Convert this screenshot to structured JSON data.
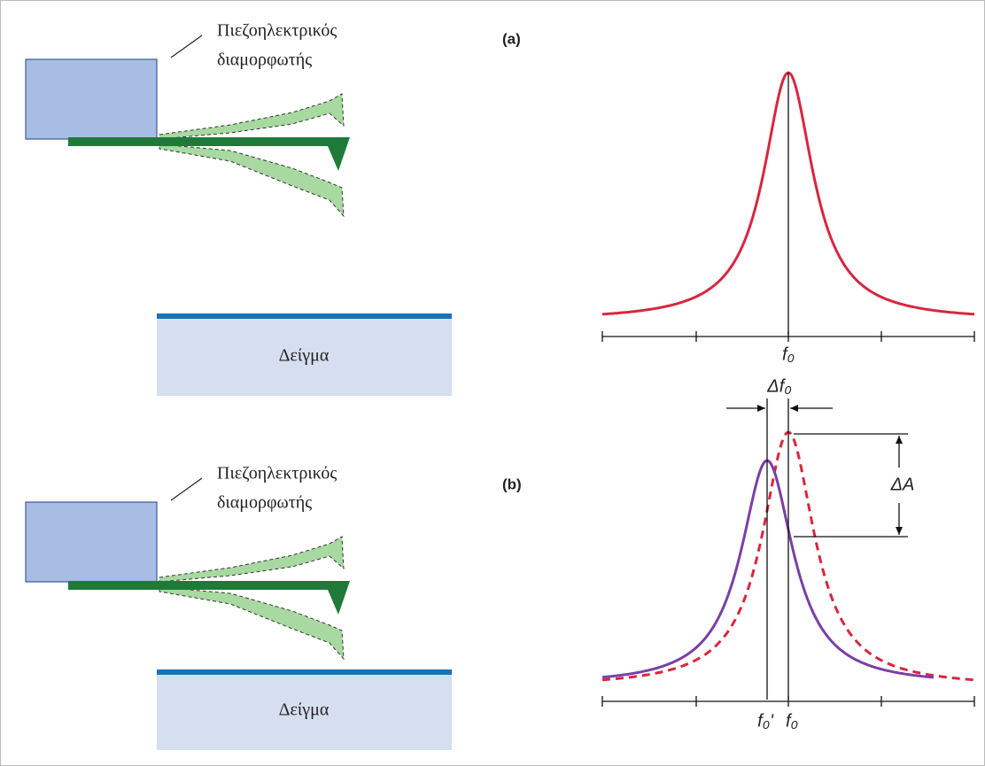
{
  "panels": [
    {
      "label": "(a)",
      "modulator": [
        "Πιεζοηλεκτρικός",
        "διαμορφωτής"
      ],
      "sample": "Δείγμα",
      "freq_labels": [
        "f₀"
      ]
    },
    {
      "label": "(b)",
      "modulator": [
        "Πιεζοηλεκτρικός",
        "διαμορφωτής"
      ],
      "sample": "Δείγμα",
      "freq_labels": [
        "f₀'",
        "f₀"
      ],
      "delta_f": "Δf₀",
      "delta_a": "ΔA"
    }
  ]
}
